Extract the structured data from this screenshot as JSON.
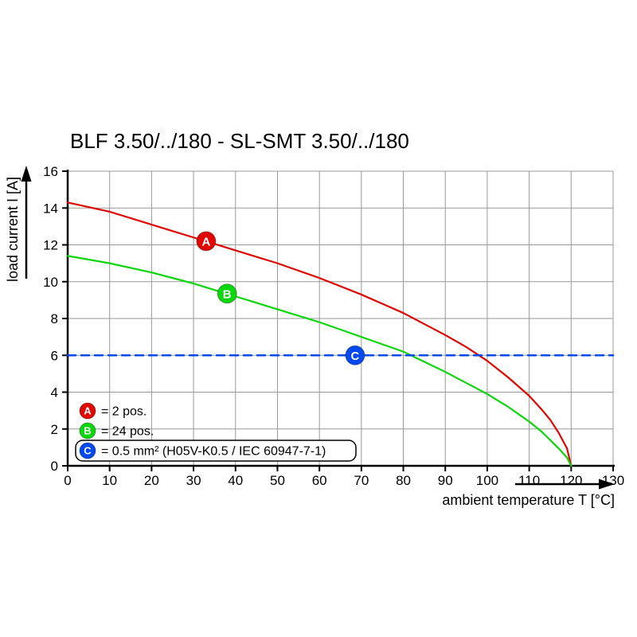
{
  "page": {
    "background": "#ffffff"
  },
  "chart_data": {
    "type": "line",
    "title": "BLF 3.50/../180 - SL-SMT 3.50/../180",
    "xlabel": "ambient temperature T [°C]",
    "ylabel": "load current I [A]",
    "xlim": [
      0,
      130
    ],
    "ylim": [
      0,
      16
    ],
    "x_ticks": [
      0,
      10,
      20,
      30,
      40,
      50,
      60,
      70,
      80,
      90,
      100,
      110,
      120,
      130
    ],
    "y_ticks": [
      0,
      2,
      4,
      6,
      8,
      10,
      12,
      14,
      16
    ],
    "grid": true,
    "grid_color": "#999999",
    "axis_color": "#000000",
    "series": [
      {
        "id": "A",
        "legend": "= 2 pos.",
        "color": "#e10600",
        "style": "solid",
        "points": [
          [
            0,
            14.3
          ],
          [
            5,
            14.05
          ],
          [
            10,
            13.8
          ],
          [
            15,
            13.45
          ],
          [
            20,
            13.1
          ],
          [
            25,
            12.75
          ],
          [
            30,
            12.4
          ],
          [
            35,
            12.05
          ],
          [
            40,
            11.7
          ],
          [
            45,
            11.35
          ],
          [
            50,
            11.0
          ],
          [
            55,
            10.6
          ],
          [
            60,
            10.2
          ],
          [
            65,
            9.75
          ],
          [
            70,
            9.3
          ],
          [
            75,
            8.8
          ],
          [
            80,
            8.3
          ],
          [
            85,
            7.7
          ],
          [
            90,
            7.1
          ],
          [
            95,
            6.45
          ],
          [
            100,
            5.7
          ],
          [
            105,
            4.8
          ],
          [
            110,
            3.8
          ],
          [
            113,
            3.05
          ],
          [
            115,
            2.5
          ],
          [
            117,
            1.8
          ],
          [
            119,
            0.95
          ],
          [
            120,
            0
          ]
        ],
        "marker": {
          "x": 33,
          "y": 12.2
        }
      },
      {
        "id": "B",
        "legend": "= 24 pos.",
        "color": "#0bd80b",
        "style": "solid",
        "points": [
          [
            0,
            11.4
          ],
          [
            5,
            11.2
          ],
          [
            10,
            11.0
          ],
          [
            15,
            10.75
          ],
          [
            20,
            10.5
          ],
          [
            25,
            10.2
          ],
          [
            30,
            9.9
          ],
          [
            35,
            9.55
          ],
          [
            40,
            9.2
          ],
          [
            45,
            8.85
          ],
          [
            50,
            8.5
          ],
          [
            55,
            8.15
          ],
          [
            60,
            7.8
          ],
          [
            65,
            7.4
          ],
          [
            70,
            7.0
          ],
          [
            75,
            6.6
          ],
          [
            80,
            6.2
          ],
          [
            85,
            5.65
          ],
          [
            90,
            5.1
          ],
          [
            95,
            4.5
          ],
          [
            100,
            3.9
          ],
          [
            105,
            3.2
          ],
          [
            110,
            2.4
          ],
          [
            113,
            1.85
          ],
          [
            115,
            1.4
          ],
          [
            117,
            0.95
          ],
          [
            119,
            0.45
          ],
          [
            120,
            0
          ]
        ],
        "marker": {
          "x": 38,
          "y": 9.35
        }
      },
      {
        "id": "C",
        "legend": "= 0.5 mm² (H05V-K0.5 / IEC 60947-7-1)",
        "color": "#0048f0",
        "style": "dashed",
        "points": [
          [
            0,
            6
          ],
          [
            130,
            6
          ]
        ],
        "marker": {
          "x": 68.5,
          "y": 6
        },
        "boxed_legend": true
      }
    ]
  }
}
